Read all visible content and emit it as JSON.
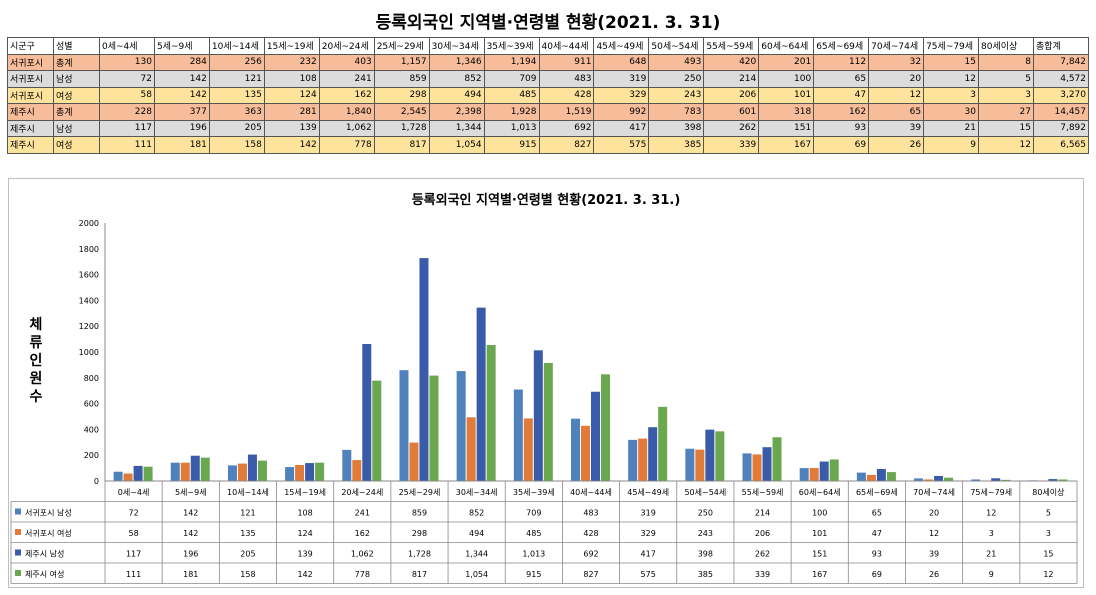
{
  "table": {
    "title": "등록외국인 지역별·연령별 현황(2021. 3. 31)",
    "headers": [
      "시군구",
      "성별",
      "0세~4세",
      "5세~9세",
      "10세~14세",
      "15세~19세",
      "20세~24세",
      "25세~29세",
      "30세~34세",
      "35세~39세",
      "40세~44세",
      "45세~49세",
      "50세~54세",
      "55세~59세",
      "60세~64세",
      "65세~69세",
      "70세~74세",
      "75세~79세",
      "80세이상",
      "총합계"
    ],
    "rows": [
      {
        "region": "서귀포시",
        "gender": "총계",
        "values": [
          "130",
          "284",
          "256",
          "232",
          "403",
          "1,157",
          "1,346",
          "1,194",
          "911",
          "648",
          "493",
          "420",
          "201",
          "112",
          "32",
          "15",
          "8",
          "7,842"
        ]
      },
      {
        "region": "서귀포시",
        "gender": "남성",
        "values": [
          "72",
          "142",
          "121",
          "108",
          "241",
          "859",
          "852",
          "709",
          "483",
          "319",
          "250",
          "214",
          "100",
          "65",
          "20",
          "12",
          "5",
          "4,572"
        ]
      },
      {
        "region": "서귀포시",
        "gender": "여성",
        "values": [
          "58",
          "142",
          "135",
          "124",
          "162",
          "298",
          "494",
          "485",
          "428",
          "329",
          "243",
          "206",
          "101",
          "47",
          "12",
          "3",
          "3",
          "3,270"
        ]
      },
      {
        "region": "제주시",
        "gender": "총계",
        "values": [
          "228",
          "377",
          "363",
          "281",
          "1,840",
          "2,545",
          "2,398",
          "1,928",
          "1,519",
          "992",
          "783",
          "601",
          "318",
          "162",
          "65",
          "30",
          "27",
          "14,457"
        ]
      },
      {
        "region": "제주시",
        "gender": "남성",
        "values": [
          "117",
          "196",
          "205",
          "139",
          "1,062",
          "1,728",
          "1,344",
          "1,013",
          "692",
          "417",
          "398",
          "262",
          "151",
          "93",
          "39",
          "21",
          "15",
          "7,892"
        ]
      },
      {
        "region": "제주시",
        "gender": "여성",
        "values": [
          "111",
          "181",
          "158",
          "142",
          "778",
          "817",
          "1,054",
          "915",
          "827",
          "575",
          "385",
          "339",
          "167",
          "69",
          "26",
          "9",
          "12",
          "6,565"
        ]
      }
    ]
  },
  "chart_data": {
    "type": "bar",
    "title": "등록외국인 지역별·연령별 현황(2021. 3. 31.)",
    "ylabel": "체류인원수",
    "xlabel": "",
    "ylim": [
      0,
      2000
    ],
    "yticks": [
      "0",
      "200",
      "400",
      "600",
      "800",
      "1000",
      "1200",
      "1400",
      "1600",
      "1800",
      "2000"
    ],
    "grid": false,
    "legend": "data-table-bottom",
    "categories": [
      "0세~4세",
      "5세~9세",
      "10세~14세",
      "15세~19세",
      "20세~24세",
      "25세~29세",
      "30세~34세",
      "35세~39세",
      "40세~44세",
      "45세~49세",
      "50세~54세",
      "55세~59세",
      "60세~64세",
      "65세~69세",
      "70세~74세",
      "75세~79세",
      "80세이상"
    ],
    "series": [
      {
        "name": "서귀포시 남성",
        "color": "#4f81bd",
        "values": [
          72,
          142,
          121,
          108,
          241,
          859,
          852,
          709,
          483,
          319,
          250,
          214,
          100,
          65,
          20,
          12,
          5
        ],
        "labels": [
          "72",
          "142",
          "121",
          "108",
          "241",
          "859",
          "852",
          "709",
          "483",
          "319",
          "250",
          "214",
          "100",
          "65",
          "20",
          "12",
          "5"
        ]
      },
      {
        "name": "서귀포시 여성",
        "color": "#e07b39",
        "values": [
          58,
          142,
          135,
          124,
          162,
          298,
          494,
          485,
          428,
          329,
          243,
          206,
          101,
          47,
          12,
          3,
          3
        ],
        "labels": [
          "58",
          "142",
          "135",
          "124",
          "162",
          "298",
          "494",
          "485",
          "428",
          "329",
          "243",
          "206",
          "101",
          "47",
          "12",
          "3",
          "3"
        ]
      },
      {
        "name": "제주시 남성",
        "color": "#3a5ba9",
        "values": [
          117,
          196,
          205,
          139,
          1062,
          1728,
          1344,
          1013,
          692,
          417,
          398,
          262,
          151,
          93,
          39,
          21,
          15
        ],
        "labels": [
          "117",
          "196",
          "205",
          "139",
          "1,062",
          "1,728",
          "1,344",
          "1,013",
          "692",
          "417",
          "398",
          "262",
          "151",
          "93",
          "39",
          "21",
          "15"
        ]
      },
      {
        "name": "제주시 여성",
        "color": "#6aa84f",
        "values": [
          111,
          181,
          158,
          142,
          778,
          817,
          1054,
          915,
          827,
          575,
          385,
          339,
          167,
          69,
          26,
          9,
          12
        ],
        "labels": [
          "111",
          "181",
          "158",
          "142",
          "778",
          "817",
          "1,054",
          "915",
          "827",
          "575",
          "385",
          "339",
          "167",
          "69",
          "26",
          "9",
          "12"
        ]
      }
    ]
  }
}
